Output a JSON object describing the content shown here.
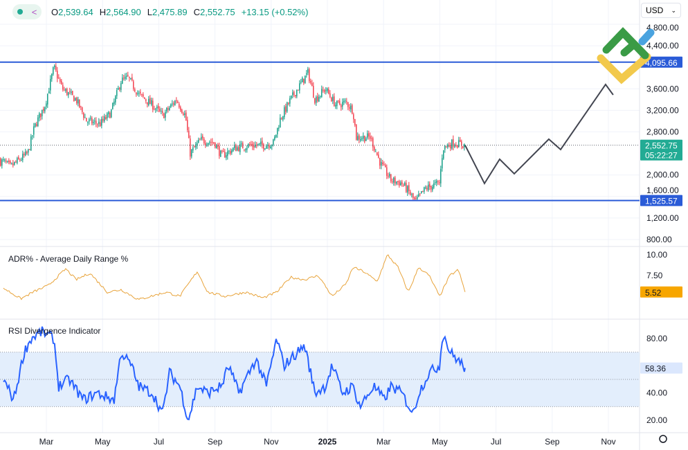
{
  "header": {
    "open_label": "O",
    "open": "2,539.64",
    "high_label": "H",
    "high": "2,564.90",
    "low_label": "L",
    "low": "2,475.89",
    "close_label": "C",
    "close": "2,552.75",
    "change": "+13.15 (+0.52%)",
    "currency": "USD"
  },
  "colors": {
    "up": "#089981",
    "down": "#f23645",
    "level": "#2a5bd7",
    "adr": "#e8a33a",
    "rsi": "#2962ff",
    "rsi_band": "#e3eefc",
    "projection": "#434651"
  },
  "chart_data": [
    {
      "type": "candlestick",
      "title": "Price",
      "x_unit": "months since Jan 2024",
      "x_domain": [
        0.35,
        24.8
      ],
      "ylim": [
        800,
        4800
      ],
      "y_ticks": [
        "800.00",
        "1,200.00",
        "1,600.00",
        "2,000.00",
        "2,800.00",
        "3,200.00",
        "3,600.00",
        "4,400.00",
        "4,800.00"
      ],
      "y_tick_values": [
        800,
        1200,
        1600,
        2000,
        2800,
        3200,
        3600,
        4400,
        4800
      ],
      "x_ticks": [
        {
          "m": 2,
          "label": "Mar"
        },
        {
          "m": 4,
          "label": "May"
        },
        {
          "m": 6,
          "label": "Jul"
        },
        {
          "m": 8,
          "label": "Sep"
        },
        {
          "m": 10,
          "label": "Nov"
        },
        {
          "m": 12,
          "label": "2025"
        },
        {
          "m": 14,
          "label": "Mar"
        },
        {
          "m": 16,
          "label": "May"
        },
        {
          "m": 18,
          "label": "Jul"
        },
        {
          "m": 20,
          "label": "Sep"
        },
        {
          "m": 22,
          "label": "Nov"
        }
      ],
      "price_path": [
        [
          0.47,
          2250
        ],
        [
          0.72,
          2150
        ],
        [
          1.34,
          2400
        ],
        [
          1.58,
          2900
        ],
        [
          1.95,
          3300
        ],
        [
          2.27,
          4000
        ],
        [
          2.57,
          3600
        ],
        [
          3.06,
          3400
        ],
        [
          3.43,
          3000
        ],
        [
          3.92,
          2950
        ],
        [
          4.29,
          3150
        ],
        [
          4.66,
          3750
        ],
        [
          4.91,
          3800
        ],
        [
          5.28,
          3500
        ],
        [
          5.77,
          3300
        ],
        [
          6.14,
          3100
        ],
        [
          6.63,
          3400
        ],
        [
          6.95,
          3100
        ],
        [
          7.12,
          2400
        ],
        [
          7.49,
          2650
        ],
        [
          7.99,
          2600
        ],
        [
          8.23,
          2350
        ],
        [
          8.72,
          2500
        ],
        [
          9.22,
          2550
        ],
        [
          9.71,
          2550
        ],
        [
          10.08,
          2600
        ],
        [
          10.33,
          3050
        ],
        [
          10.69,
          3400
        ],
        [
          11.06,
          3700
        ],
        [
          11.31,
          3900
        ],
        [
          11.56,
          3400
        ],
        [
          11.93,
          3600
        ],
        [
          12.3,
          3300
        ],
        [
          12.67,
          3350
        ],
        [
          12.91,
          3200
        ],
        [
          13.03,
          2700
        ],
        [
          13.53,
          2700
        ],
        [
          13.9,
          2200
        ],
        [
          14.27,
          1900
        ],
        [
          14.64,
          1850
        ],
        [
          14.88,
          1700
        ],
        [
          15.13,
          1500
        ],
        [
          15.5,
          1750
        ],
        [
          15.99,
          1850
        ],
        [
          16.11,
          2500
        ],
        [
          16.48,
          2600
        ],
        [
          16.9,
          2553
        ]
      ],
      "projection": [
        [
          16.9,
          2553
        ],
        [
          17.59,
          1842
        ],
        [
          18.13,
          2292
        ],
        [
          18.65,
          2022
        ],
        [
          19.88,
          2665
        ],
        [
          20.3,
          2472
        ],
        [
          21.9,
          3681
        ],
        [
          22.17,
          3488
        ]
      ],
      "levels": [
        {
          "value": 4095.66,
          "label": "4,095.66"
        },
        {
          "value": 1525.57,
          "label": "1,525.57"
        }
      ],
      "last_price": {
        "value": 2552.75,
        "label": "2,552.75",
        "countdown": "05:22:27"
      }
    },
    {
      "type": "line",
      "title": "ADR% - Average Daily Range %",
      "ylim": [
        3.8,
        10.8
      ],
      "y_ticks": [
        "7.50",
        "10.00"
      ],
      "y_tick_values": [
        7.5,
        10
      ],
      "series": [
        [
          0.47,
          6.0
        ],
        [
          1.09,
          4.7
        ],
        [
          1.58,
          5.6
        ],
        [
          2.07,
          6.3
        ],
        [
          2.69,
          8.3
        ],
        [
          3.06,
          7.0
        ],
        [
          3.55,
          7.8
        ],
        [
          4.17,
          5.5
        ],
        [
          4.66,
          5.8
        ],
        [
          5.28,
          4.6
        ],
        [
          6.26,
          5.5
        ],
        [
          6.75,
          5.0
        ],
        [
          7.37,
          8.0
        ],
        [
          7.74,
          5.5
        ],
        [
          8.35,
          5.0
        ],
        [
          9.09,
          5.5
        ],
        [
          9.71,
          4.8
        ],
        [
          10.2,
          5.5
        ],
        [
          10.69,
          7.3
        ],
        [
          11.19,
          7.0
        ],
        [
          11.68,
          7.5
        ],
        [
          12.17,
          5.0
        ],
        [
          12.67,
          6.5
        ],
        [
          12.91,
          8.5
        ],
        [
          13.28,
          8.0
        ],
        [
          13.77,
          6.8
        ],
        [
          14.14,
          10.0
        ],
        [
          14.51,
          8.5
        ],
        [
          14.88,
          5.5
        ],
        [
          15.25,
          8.5
        ],
        [
          15.62,
          7.5
        ],
        [
          15.99,
          5.0
        ],
        [
          16.36,
          7.5
        ],
        [
          16.66,
          8.2
        ],
        [
          16.9,
          5.52
        ]
      ],
      "last": {
        "value": 5.52,
        "label": "5.52"
      }
    },
    {
      "type": "line",
      "title": "RSI Divergence Indicator",
      "ylim": [
        12,
        93
      ],
      "y_ticks": [
        "20.00",
        "40.00",
        "80.00"
      ],
      "y_tick_values": [
        20,
        40,
        80
      ],
      "band": [
        30,
        70
      ],
      "midline": 50,
      "series": [
        [
          0.47,
          50
        ],
        [
          0.84,
          35
        ],
        [
          1.21,
          70
        ],
        [
          1.46,
          80
        ],
        [
          1.83,
          85
        ],
        [
          2.27,
          80
        ],
        [
          2.44,
          45
        ],
        [
          2.81,
          50
        ],
        [
          3.31,
          35
        ],
        [
          3.8,
          40
        ],
        [
          4.41,
          35
        ],
        [
          4.66,
          70
        ],
        [
          5.03,
          60
        ],
        [
          5.28,
          45
        ],
        [
          5.77,
          40
        ],
        [
          6.14,
          25
        ],
        [
          6.38,
          55
        ],
        [
          6.75,
          45
        ],
        [
          7.05,
          20
        ],
        [
          7.37,
          45
        ],
        [
          7.74,
          40
        ],
        [
          8.23,
          45
        ],
        [
          8.48,
          60
        ],
        [
          8.85,
          40
        ],
        [
          9.46,
          65
        ],
        [
          9.83,
          45
        ],
        [
          10.2,
          80
        ],
        [
          10.45,
          60
        ],
        [
          10.94,
          70
        ],
        [
          11.19,
          75
        ],
        [
          11.56,
          40
        ],
        [
          11.93,
          45
        ],
        [
          12.17,
          60
        ],
        [
          12.54,
          40
        ],
        [
          12.91,
          45
        ],
        [
          13.16,
          30
        ],
        [
          13.65,
          45
        ],
        [
          14.02,
          35
        ],
        [
          14.27,
          45
        ],
        [
          14.64,
          40
        ],
        [
          15.05,
          25
        ],
        [
          15.25,
          40
        ],
        [
          15.62,
          55
        ],
        [
          15.99,
          60
        ],
        [
          16.11,
          85
        ],
        [
          16.36,
          70
        ],
        [
          16.61,
          65
        ],
        [
          16.9,
          58.36
        ]
      ],
      "last": {
        "value": 58.36,
        "label": "58.36"
      }
    }
  ]
}
